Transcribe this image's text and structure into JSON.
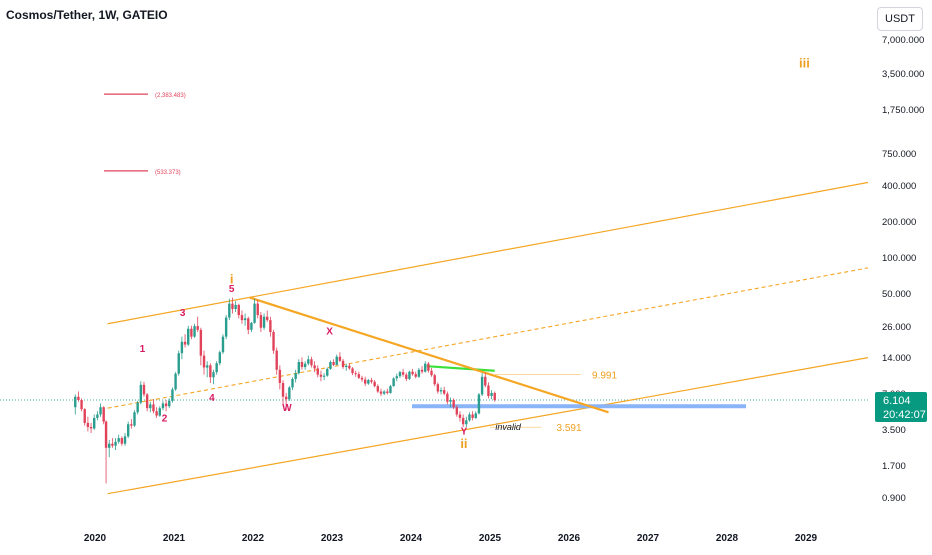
{
  "header": {
    "symbol_title": "Cosmos/Tether, 1W, GATEIO",
    "currency": "USDT"
  },
  "price_tag": {
    "price": "6.104",
    "countdown": "20:42:07"
  },
  "colors": {
    "channel": "#f5a623",
    "trendline": "#f5a623",
    "up_candle": "#2a9d8f",
    "down_candle": "#e0435a",
    "wave_labels": "#d81b60",
    "wave_degree": "#f0a020",
    "support_zone": "#8ab4f8",
    "resistance_bar": "#3be03b",
    "target_lines": "#e0435a",
    "price_tag_bg": "#089981"
  },
  "chart_data": {
    "type": "candlestick",
    "y_scale": "log",
    "y_ticks": [
      "7,000.000",
      "3,500.000",
      "1,750.000",
      "750.000",
      "400.000",
      "200.000",
      "100.000",
      "50.000",
      "26.000",
      "14.000",
      "7.000",
      "3.500",
      "1.700",
      "0.900"
    ],
    "x_ticks": [
      "2020",
      "2021",
      "2022",
      "2023",
      "2024",
      "2025",
      "2026",
      "2027",
      "2028",
      "2029"
    ],
    "wave_labels": [
      {
        "text": "1",
        "date": "2020.60",
        "price": 15.5
      },
      {
        "text": "2",
        "date": "2020.88",
        "price": 4.0
      },
      {
        "text": "3",
        "date": "2021.11",
        "price": 31.5
      },
      {
        "text": "4",
        "date": "2021.48",
        "price": 6.0
      },
      {
        "text": "5",
        "date": "2021.73",
        "price": 50.0
      },
      {
        "text": "X",
        "date": "2022.97",
        "price": 22.0
      },
      {
        "text": "W",
        "date": "2022.43",
        "price": 4.9
      },
      {
        "text": "Y",
        "date": "2024.67",
        "price": 3.1
      }
    ],
    "degree_labels": [
      {
        "text": "i",
        "date": "2021.73",
        "price": 59.0
      },
      {
        "text": "ii",
        "date": "2024.67",
        "price": 2.4
      },
      {
        "text": "iii",
        "date": "2028.98",
        "price": 4000.0
      }
    ],
    "level_labels": [
      {
        "text": "(2,383.483)",
        "price": 2383.483
      },
      {
        "text": "(533.373)",
        "price": 533.373
      }
    ],
    "annotations": [
      {
        "text": "9.991",
        "price": 9.991
      },
      {
        "text": "3.591",
        "price": 3.591
      },
      {
        "text": "invalid",
        "price": 3.6
      }
    ],
    "candles": [
      [
        2019.75,
        5.3,
        6.8,
        4.6,
        6.5
      ],
      [
        2019.79,
        6.5,
        7.2,
        5.9,
        6.1
      ],
      [
        2019.83,
        6.1,
        6.3,
        4.9,
        5.1
      ],
      [
        2019.87,
        5.1,
        5.2,
        3.7,
        3.9
      ],
      [
        2019.91,
        3.9,
        4.4,
        3.3,
        3.6
      ],
      [
        2019.95,
        3.6,
        3.9,
        3.2,
        3.5
      ],
      [
        2019.99,
        3.5,
        4.6,
        3.4,
        4.3
      ],
      [
        2020.03,
        4.3,
        4.9,
        4.1,
        4.6
      ],
      [
        2020.07,
        4.6,
        5.7,
        4.4,
        5.3
      ],
      [
        2020.11,
        5.3,
        5.4,
        3.8,
        4.0
      ],
      [
        2020.14,
        4.0,
        4.1,
        1.2,
        2.4
      ],
      [
        2020.18,
        2.4,
        2.8,
        2.0,
        2.6
      ],
      [
        2020.22,
        2.6,
        2.9,
        2.4,
        2.5
      ],
      [
        2020.26,
        2.5,
        2.9,
        2.3,
        2.7
      ],
      [
        2020.3,
        2.7,
        3.1,
        2.6,
        2.9
      ],
      [
        2020.34,
        2.9,
        3.0,
        2.5,
        2.6
      ],
      [
        2020.38,
        2.6,
        3.2,
        2.5,
        3.0
      ],
      [
        2020.42,
        3.0,
        4.0,
        2.9,
        3.8
      ],
      [
        2020.46,
        3.8,
        4.2,
        3.5,
        3.7
      ],
      [
        2020.5,
        3.7,
        5.0,
        3.6,
        4.8
      ],
      [
        2020.54,
        4.8,
        6.0,
        4.6,
        5.8
      ],
      [
        2020.58,
        5.8,
        8.8,
        5.6,
        8.2
      ],
      [
        2020.62,
        8.2,
        8.7,
        6.5,
        6.8
      ],
      [
        2020.66,
        6.8,
        7.0,
        4.9,
        5.2
      ],
      [
        2020.7,
        5.2,
        5.9,
        4.8,
        5.6
      ],
      [
        2020.74,
        5.6,
        6.2,
        4.7,
        4.9
      ],
      [
        2020.78,
        4.9,
        5.3,
        4.3,
        4.5
      ],
      [
        2020.82,
        4.5,
        5.4,
        4.4,
        5.2
      ],
      [
        2020.86,
        5.2,
        6.0,
        5.0,
        5.7
      ],
      [
        2020.9,
        5.7,
        6.1,
        4.9,
        5.4
      ],
      [
        2020.94,
        5.4,
        6.3,
        5.2,
        6.0
      ],
      [
        2020.98,
        6.0,
        7.8,
        5.8,
        7.5
      ],
      [
        2021.02,
        7.5,
        10.5,
        7.3,
        10.2
      ],
      [
        2021.06,
        10.2,
        16.0,
        9.8,
        15.2
      ],
      [
        2021.1,
        15.2,
        21.0,
        13.5,
        19.0
      ],
      [
        2021.14,
        19.0,
        22.0,
        17.0,
        18.0
      ],
      [
        2021.18,
        18.0,
        26.0,
        17.5,
        24.5
      ],
      [
        2021.22,
        24.5,
        26.0,
        20.0,
        21.0
      ],
      [
        2021.26,
        21.0,
        27.0,
        20.5,
        25.8
      ],
      [
        2021.3,
        25.8,
        31.0,
        23.0,
        24.0
      ],
      [
        2021.34,
        24.0,
        25.0,
        12.0,
        14.5
      ],
      [
        2021.38,
        14.5,
        16.0,
        10.0,
        11.5
      ],
      [
        2021.42,
        11.5,
        13.0,
        9.5,
        12.0
      ],
      [
        2021.46,
        12.0,
        12.5,
        8.5,
        9.5
      ],
      [
        2021.5,
        9.5,
        11.0,
        8.3,
        10.5
      ],
      [
        2021.54,
        10.5,
        13.0,
        10.0,
        12.5
      ],
      [
        2021.58,
        12.5,
        16.0,
        12.0,
        15.5
      ],
      [
        2021.62,
        15.5,
        22.0,
        15.0,
        21.0
      ],
      [
        2021.66,
        21.0,
        32.0,
        20.0,
        30.5
      ],
      [
        2021.7,
        30.5,
        44.0,
        29.0,
        40.0
      ],
      [
        2021.74,
        40.0,
        45.0,
        33.0,
        36.0
      ],
      [
        2021.78,
        36.0,
        42.0,
        34.0,
        39.0
      ],
      [
        2021.82,
        39.0,
        40.0,
        30.0,
        32.0
      ],
      [
        2021.86,
        32.0,
        35.0,
        27.0,
        29.0
      ],
      [
        2021.9,
        29.0,
        33.0,
        26.0,
        30.0
      ],
      [
        2021.94,
        30.0,
        31.0,
        22.0,
        24.0
      ],
      [
        2021.98,
        24.0,
        28.0,
        23.0,
        27.5
      ],
      [
        2022.02,
        27.5,
        44.0,
        27.0,
        40.0
      ],
      [
        2022.06,
        40.0,
        43.0,
        30.0,
        32.0
      ],
      [
        2022.1,
        32.0,
        34.0,
        23.0,
        25.0
      ],
      [
        2022.14,
        25.0,
        33.0,
        24.0,
        31.0
      ],
      [
        2022.18,
        31.0,
        35.0,
        28.0,
        29.0
      ],
      [
        2022.22,
        29.0,
        31.0,
        21.0,
        23.0
      ],
      [
        2022.26,
        23.0,
        24.0,
        15.0,
        16.0
      ],
      [
        2022.3,
        16.0,
        17.0,
        10.0,
        11.0
      ],
      [
        2022.34,
        11.0,
        12.0,
        7.5,
        8.5
      ],
      [
        2022.38,
        8.5,
        9.0,
        5.5,
        6.5
      ],
      [
        2022.42,
        6.5,
        7.0,
        5.0,
        6.2
      ],
      [
        2022.46,
        6.2,
        8.0,
        6.0,
        7.8
      ],
      [
        2022.5,
        7.8,
        9.5,
        7.4,
        9.2
      ],
      [
        2022.54,
        9.2,
        11.0,
        8.6,
        10.3
      ],
      [
        2022.58,
        10.3,
        13.5,
        10.0,
        12.8
      ],
      [
        2022.62,
        12.8,
        14.0,
        11.0,
        11.6
      ],
      [
        2022.66,
        11.6,
        13.0,
        11.0,
        12.4
      ],
      [
        2022.7,
        12.4,
        14.5,
        12.0,
        13.5
      ],
      [
        2022.74,
        13.5,
        14.2,
        11.5,
        12.0
      ],
      [
        2022.78,
        12.0,
        13.0,
        10.5,
        11.3
      ],
      [
        2022.82,
        11.3,
        12.0,
        9.5,
        10.0
      ],
      [
        2022.86,
        10.0,
        10.8,
        8.8,
        9.6
      ],
      [
        2022.9,
        9.6,
        10.3,
        9.0,
        9.8
      ],
      [
        2022.94,
        9.8,
        11.5,
        9.6,
        11.2
      ],
      [
        2022.98,
        11.2,
        13.2,
        11.0,
        12.8
      ],
      [
        2023.02,
        12.8,
        13.5,
        11.8,
        12.1
      ],
      [
        2023.06,
        12.1,
        14.8,
        12.0,
        14.2
      ],
      [
        2023.1,
        14.2,
        15.5,
        12.8,
        13.1
      ],
      [
        2023.14,
        13.1,
        13.6,
        11.2,
        11.6
      ],
      [
        2023.18,
        11.6,
        12.4,
        10.8,
        11.9
      ],
      [
        2023.22,
        11.9,
        12.5,
        11.0,
        11.3
      ],
      [
        2023.26,
        11.3,
        11.6,
        9.9,
        10.3
      ],
      [
        2023.3,
        10.3,
        10.8,
        9.6,
        10.1
      ],
      [
        2023.34,
        10.1,
        10.6,
        9.2,
        9.4
      ],
      [
        2023.38,
        9.4,
        9.8,
        8.7,
        9.1
      ],
      [
        2023.42,
        9.1,
        9.6,
        8.0,
        8.4
      ],
      [
        2023.46,
        8.4,
        9.2,
        8.2,
        9.0
      ],
      [
        2023.5,
        9.0,
        9.4,
        8.4,
        8.7
      ],
      [
        2023.54,
        8.7,
        9.0,
        7.8,
        8.0
      ],
      [
        2023.58,
        8.0,
        8.3,
        7.0,
        7.2
      ],
      [
        2023.62,
        7.2,
        7.6,
        6.6,
        6.9
      ],
      [
        2023.66,
        6.9,
        7.4,
        6.7,
        7.2
      ],
      [
        2023.7,
        7.2,
        7.6,
        6.8,
        7.0
      ],
      [
        2023.74,
        7.0,
        8.2,
        6.9,
        8.0
      ],
      [
        2023.78,
        8.0,
        9.5,
        7.9,
        9.3
      ],
      [
        2023.82,
        9.3,
        10.2,
        8.8,
        9.7
      ],
      [
        2023.86,
        9.7,
        10.8,
        9.4,
        10.5
      ],
      [
        2023.9,
        10.5,
        11.2,
        9.6,
        10.0
      ],
      [
        2023.94,
        10.0,
        10.4,
        8.8,
        9.2
      ],
      [
        2023.98,
        9.2,
        10.8,
        9.0,
        10.6
      ],
      [
        2024.02,
        10.6,
        11.2,
        9.8,
        10.1
      ],
      [
        2024.06,
        10.1,
        10.6,
        9.3,
        9.6
      ],
      [
        2024.1,
        9.6,
        11.4,
        9.4,
        11.0
      ],
      [
        2024.14,
        11.0,
        11.8,
        10.2,
        10.6
      ],
      [
        2024.18,
        10.6,
        13.0,
        10.4,
        12.4
      ],
      [
        2024.22,
        12.4,
        12.8,
        10.4,
        10.8
      ],
      [
        2024.26,
        10.8,
        11.4,
        9.6,
        9.9
      ],
      [
        2024.3,
        9.9,
        10.2,
        8.0,
        8.3
      ],
      [
        2024.34,
        8.3,
        8.6,
        6.9,
        7.2
      ],
      [
        2024.38,
        7.2,
        7.8,
        6.8,
        7.4
      ],
      [
        2024.42,
        7.4,
        7.9,
        6.7,
        6.9
      ],
      [
        2024.46,
        6.9,
        7.2,
        5.6,
        5.9
      ],
      [
        2024.5,
        5.9,
        6.4,
        5.3,
        6.1
      ],
      [
        2024.54,
        6.1,
        6.3,
        5.1,
        5.3
      ],
      [
        2024.58,
        5.3,
        5.5,
        4.4,
        4.6
      ],
      [
        2024.62,
        4.6,
        4.9,
        4.0,
        4.3
      ],
      [
        2024.66,
        4.3,
        4.6,
        3.6,
        3.8
      ],
      [
        2024.7,
        3.8,
        4.4,
        3.6,
        4.1
      ],
      [
        2024.74,
        4.1,
        4.8,
        4.0,
        4.6
      ],
      [
        2024.78,
        4.6,
        4.9,
        4.1,
        4.3
      ],
      [
        2024.82,
        4.3,
        4.9,
        4.2,
        4.7
      ],
      [
        2024.86,
        4.7,
        7.0,
        4.6,
        6.8
      ],
      [
        2024.9,
        6.8,
        10.3,
        6.6,
        9.6
      ],
      [
        2024.94,
        9.6,
        10.4,
        7.8,
        8.1
      ],
      [
        2024.98,
        8.1,
        8.6,
        6.3,
        6.6
      ],
      [
        2025.02,
        6.6,
        7.4,
        6.2,
        7.0
      ],
      [
        2025.06,
        7.0,
        7.2,
        5.9,
        6.104
      ]
    ]
  }
}
